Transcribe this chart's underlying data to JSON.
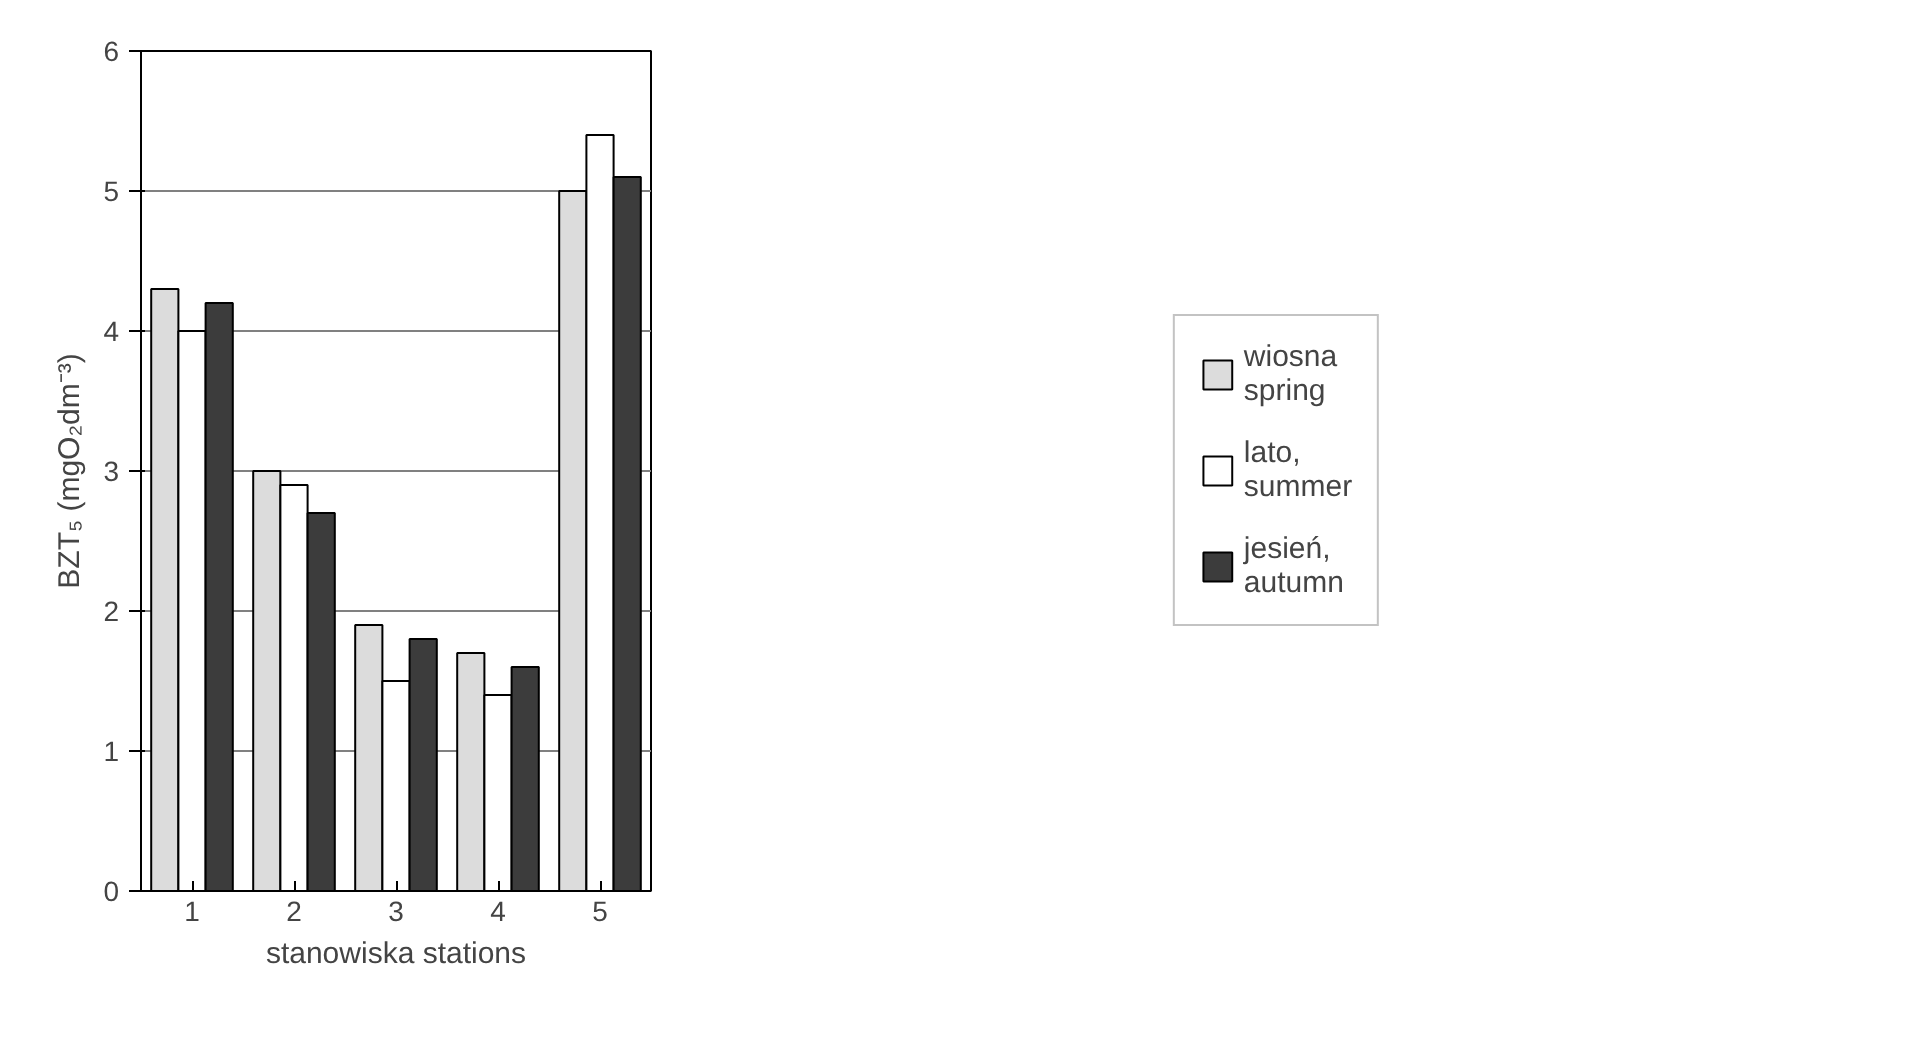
{
  "chart_data": {
    "type": "bar",
    "xlabel": "stanowiska stations",
    "ylabel": "BZT₅ (mgO₂dm⁻³)",
    "categories": [
      "1",
      "2",
      "3",
      "4",
      "5"
    ],
    "series": [
      {
        "name": "wiosna\nspring",
        "color": "#dcdcdc",
        "values": [
          4.3,
          3.0,
          1.9,
          1.7,
          5.0
        ]
      },
      {
        "name": "lato,\nsummer",
        "color": "#ffffff",
        "values": [
          4.0,
          2.9,
          1.5,
          1.4,
          5.4
        ]
      },
      {
        "name": "jesień,\nautumn",
        "color": "#3c3c3c",
        "values": [
          4.2,
          2.7,
          1.8,
          1.6,
          5.1
        ]
      }
    ],
    "ylim": [
      0,
      6
    ],
    "yticks": [
      0,
      1,
      2,
      3,
      4,
      5,
      6
    ],
    "grid": "y",
    "legend": "right"
  }
}
